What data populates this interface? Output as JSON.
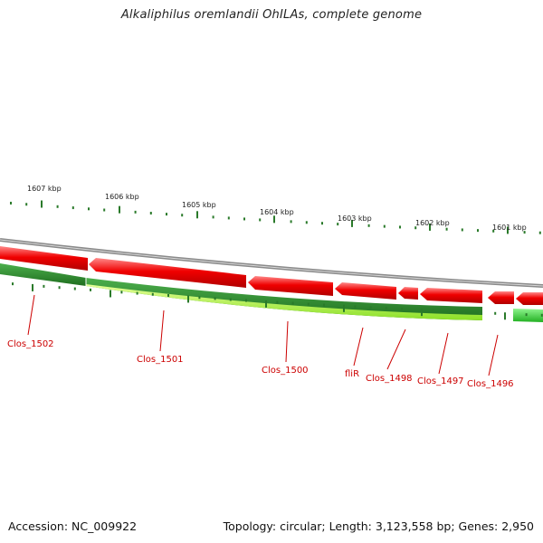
{
  "title": "Alkaliphilus oremlandii OhILAs, complete genome",
  "footer": {
    "accession": "Accession: NC_009922",
    "summary": "Topology: circular; Length: 3,123,558 bp; Genes: 2,950"
  },
  "ruler_labels": [
    "1607 kbp",
    "1606 kbp",
    "1605 kbp",
    "1604 kbp",
    "1603 kbp",
    "1602 kbp",
    "1601 kbp"
  ],
  "gene_labels": [
    "Clos_1502",
    "Clos_1501",
    "Clos_1500",
    "fliR",
    "Clos_1498",
    "Clos_1497",
    "Clos_1496"
  ],
  "colors": {
    "backbone": "#8a8a8a",
    "cds_reverse": "#e00000",
    "cds_reverse_light": "#ff7a7a",
    "gc_dark": "#2e7d2e",
    "gc_light": "#b6ff4a",
    "tick": "#2a7a2a",
    "label": "#cc0000"
  },
  "icons": {}
}
